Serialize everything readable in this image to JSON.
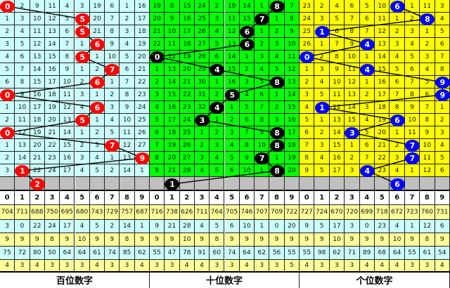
{
  "panels": [
    {
      "label": "百位数字",
      "bg": "#ccffff",
      "ball_color": "#ff0000",
      "rows": [
        [
          0,
          2,
          9,
          11,
          4,
          3,
          19,
          6,
          1,
          16
        ],
        [
          1,
          3,
          10,
          12,
          5,
          5,
          20,
          7,
          2,
          17
        ],
        [
          2,
          4,
          11,
          13,
          6,
          5,
          21,
          8,
          3,
          18
        ],
        [
          3,
          5,
          12,
          14,
          7,
          1,
          6,
          9,
          4,
          19
        ],
        [
          4,
          6,
          13,
          15,
          8,
          5,
          1,
          10,
          5,
          20
        ],
        [
          5,
          7,
          14,
          16,
          9,
          1,
          2,
          7,
          6,
          21
        ],
        [
          6,
          8,
          15,
          17,
          10,
          2,
          6,
          1,
          7,
          22
        ],
        [
          0,
          9,
          16,
          18,
          11,
          3,
          1,
          2,
          8,
          23
        ],
        [
          1,
          10,
          17,
          19,
          12,
          4,
          6,
          3,
          9,
          24
        ],
        [
          2,
          11,
          18,
          20,
          13,
          5,
          1,
          4,
          10,
          25
        ],
        [
          0,
          12,
          19,
          21,
          14,
          1,
          2,
          5,
          11,
          26
        ],
        [
          1,
          13,
          20,
          22,
          15,
          2,
          3,
          7,
          12,
          27
        ],
        [
          2,
          14,
          21,
          23,
          16,
          3,
          4,
          1,
          13,
          9
        ],
        [
          3,
          1,
          22,
          24,
          17,
          4,
          5,
          2,
          14,
          1
        ]
      ],
      "hits": [
        0,
        5,
        5,
        6,
        5,
        7,
        6,
        0,
        6,
        5,
        0,
        7,
        9,
        1,
        2
      ],
      "stats": [
        [
          704,
          711,
          688,
          750,
          695,
          680,
          743,
          729,
          757,
          687
        ],
        [
          3,
          0,
          22,
          24,
          17,
          4,
          5,
          2,
          14,
          1
        ],
        [
          9,
          9,
          9,
          8,
          9,
          10,
          9,
          9,
          8,
          9
        ],
        [
          75,
          72,
          80,
          50,
          64,
          64,
          61,
          74,
          85,
          62
        ],
        [
          4,
          3,
          4,
          3,
          3,
          3,
          4,
          3,
          3,
          4
        ]
      ]
    },
    {
      "label": "十位数字",
      "bg": "#00ff00",
      "ball_color": "#000000",
      "rows": [
        [
          19,
          8,
          15,
          24,
          2,
          10,
          14,
          1,
          8,
          7
        ],
        [
          20,
          9,
          16,
          25,
          3,
          11,
          15,
          7,
          1,
          8
        ],
        [
          21,
          10,
          17,
          26,
          4,
          12,
          6,
          1,
          2,
          9
        ],
        [
          22,
          11,
          18,
          27,
          5,
          13,
          6,
          2,
          3,
          10
        ],
        [
          0,
          12,
          19,
          28,
          6,
          14,
          1,
          3,
          4,
          11
        ],
        [
          1,
          13,
          20,
          29,
          4,
          15,
          2,
          4,
          5,
          12
        ],
        [
          2,
          14,
          21,
          30,
          1,
          16,
          3,
          5,
          8,
          13
        ],
        [
          3,
          15,
          22,
          31,
          2,
          5,
          4,
          6,
          1,
          14
        ],
        [
          4,
          16,
          23,
          32,
          4,
          1,
          5,
          7,
          2,
          15
        ],
        [
          5,
          17,
          24,
          3,
          1,
          2,
          6,
          8,
          3,
          16
        ],
        [
          6,
          18,
          25,
          1,
          2,
          3,
          7,
          9,
          8,
          17
        ],
        [
          7,
          19,
          26,
          2,
          3,
          4,
          8,
          10,
          8,
          18
        ],
        [
          8,
          20,
          27,
          3,
          4,
          5,
          9,
          7,
          1,
          19
        ],
        [
          9,
          21,
          28,
          4,
          5,
          6,
          10,
          1,
          8,
          20
        ]
      ],
      "hits": [
        8,
        7,
        6,
        6,
        0,
        4,
        8,
        5,
        4,
        3,
        8,
        8,
        7,
        8,
        1
      ],
      "stats": [
        [
          716,
          738,
          626,
          711,
          764,
          705,
          746,
          707,
          709,
          722
        ],
        [
          9,
          21,
          28,
          4,
          5,
          6,
          10,
          1,
          0,
          20
        ],
        [
          9,
          9,
          10,
          9,
          8,
          9,
          9,
          9,
          9,
          9
        ],
        [
          55,
          47,
          78,
          91,
          60,
          74,
          64,
          62,
          56,
          55
        ],
        [
          3,
          3,
          4,
          4,
          3,
          3,
          4,
          3,
          3,
          5
        ]
      ]
    },
    {
      "label": "个位数字",
      "bg": "#ffff00",
      "ball_color": "#0000ff",
      "rows": [
        [
          23,
          2,
          4,
          6,
          5,
          10,
          6,
          1,
          11,
          3
        ],
        [
          24,
          3,
          5,
          7,
          6,
          11,
          1,
          2,
          8,
          4
        ],
        [
          25,
          1,
          6,
          8,
          7,
          12,
          2,
          3,
          1,
          5
        ],
        [
          26,
          1,
          7,
          9,
          4,
          13,
          3,
          4,
          2,
          6
        ],
        [
          0,
          2,
          8,
          10,
          1,
          14,
          4,
          5,
          3,
          7
        ],
        [
          1,
          3,
          9,
          11,
          4,
          15,
          5,
          6,
          4,
          8
        ],
        [
          2,
          4,
          10,
          12,
          1,
          16,
          6,
          7,
          5,
          9
        ],
        [
          3,
          5,
          11,
          13,
          2,
          17,
          7,
          8,
          6,
          9
        ],
        [
          4,
          1,
          12,
          14,
          3,
          18,
          8,
          9,
          7,
          1
        ],
        [
          5,
          1,
          13,
          15,
          4,
          19,
          6,
          10,
          8,
          2
        ],
        [
          6,
          2,
          14,
          3,
          5,
          20,
          1,
          11,
          9,
          3
        ],
        [
          7,
          3,
          15,
          1,
          6,
          21,
          2,
          7,
          10,
          4
        ],
        [
          8,
          4,
          16,
          2,
          7,
          22,
          3,
          7,
          11,
          5
        ],
        [
          9,
          5,
          17,
          3,
          4,
          23,
          4,
          1,
          12,
          6
        ]
      ],
      "hits": [
        6,
        8,
        1,
        4,
        0,
        4,
        9,
        9,
        1,
        6,
        3,
        7,
        7,
        4,
        6
      ],
      "stats": [
        [
          727,
          724,
          670,
          720,
          699,
          718,
          672,
          723,
          760,
          731
        ],
        [
          9,
          5,
          17,
          3,
          0,
          23,
          4,
          1,
          12,
          6
        ],
        [
          9,
          9,
          10,
          9,
          9,
          9,
          10,
          9,
          8,
          9
        ],
        [
          55,
          98,
          62,
          71,
          89,
          68,
          64,
          55,
          61,
          54
        ],
        [
          4,
          3,
          3,
          3,
          4,
          4,
          4,
          3,
          3,
          4
        ]
      ]
    }
  ],
  "digits": [
    "0",
    "1",
    "2",
    "3",
    "4",
    "5",
    "6",
    "7",
    "8",
    "9"
  ],
  "colors": {
    "stat_yellow": "#ffff99",
    "stat_cyan": "#ccffff",
    "pending_row": "#c0c0c0"
  }
}
